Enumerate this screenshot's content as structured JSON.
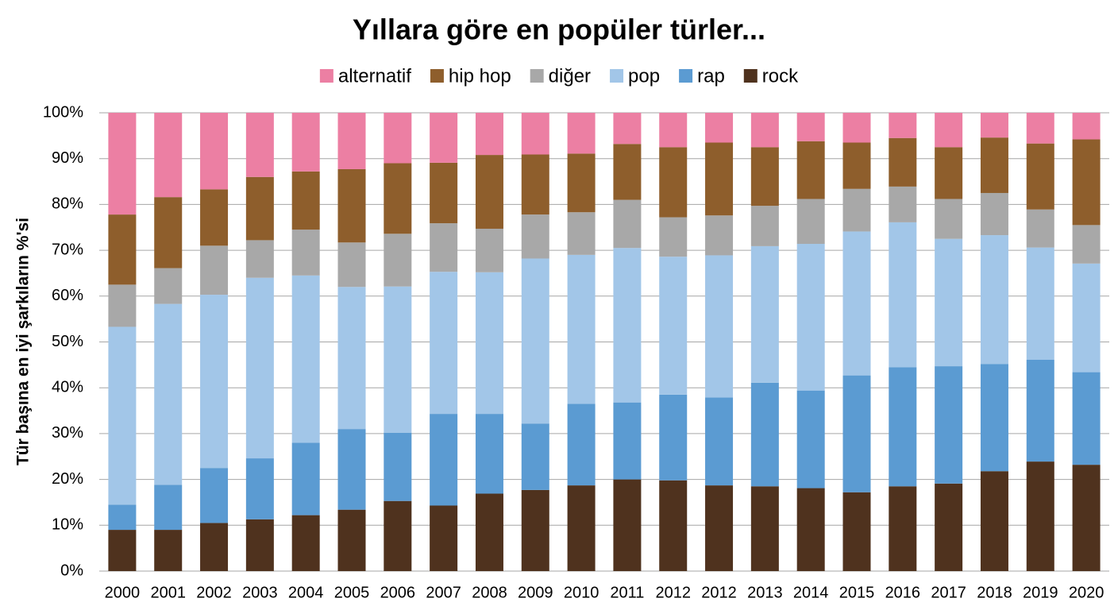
{
  "chart_data": {
    "type": "stacked_bar",
    "title": "Yıllara göre en popüler türler...",
    "y_label": "Tür başına en iyi şarkıların %'si",
    "categories": [
      "2000",
      "2001",
      "2002",
      "2003",
      "2004",
      "2005",
      "2006",
      "2007",
      "2008",
      "2009",
      "2010",
      "2011",
      "2012",
      "2012",
      "2013",
      "2014",
      "2015",
      "2016",
      "2017",
      "2018",
      "2019",
      "2020"
    ],
    "series": [
      {
        "name": "rock",
        "color": "#4f321e",
        "values": [
          9,
          9,
          10.5,
          11.3,
          12.2,
          13.4,
          15.3,
          14.3,
          16.9,
          17.7,
          18.7,
          20,
          19.8,
          18.7,
          18.5,
          18.1,
          17.2,
          18.5,
          19.1,
          21.8,
          23.9,
          23.2
        ]
      },
      {
        "name": "rap",
        "color": "#5b9bd2",
        "values": [
          5.5,
          9.8,
          12,
          13.3,
          15.8,
          17.6,
          14.9,
          20,
          17.4,
          14.5,
          17.8,
          16.8,
          18.7,
          19.2,
          22.6,
          21.3,
          25.5,
          26,
          25.6,
          23.4,
          22.2,
          20.2
        ]
      },
      {
        "name": "pop",
        "color": "#a2c6e8",
        "values": [
          38.8,
          39.5,
          37.8,
          39.4,
          36.5,
          31,
          31.9,
          31,
          30.9,
          36,
          32.5,
          33.7,
          30.1,
          31,
          29.8,
          32,
          31.4,
          31.6,
          27.8,
          28.1,
          24.5,
          23.7
        ]
      },
      {
        "name": "diğer",
        "color": "#a8a8a8",
        "values": [
          9.2,
          7.8,
          10.7,
          8.2,
          10,
          9.7,
          11.5,
          10.6,
          9.5,
          9.6,
          9.3,
          10.5,
          8.6,
          8.7,
          8.8,
          9.8,
          9.3,
          7.8,
          8.7,
          9.2,
          8.3,
          8.4
        ]
      },
      {
        "name": "hip hop",
        "color": "#8e5e2c",
        "values": [
          15.3,
          15.5,
          12.3,
          13.8,
          12.7,
          16,
          15.4,
          13.2,
          16.1,
          13.1,
          12.8,
          12.2,
          15.3,
          15.9,
          12.8,
          12.6,
          10.1,
          10.6,
          11.3,
          12.1,
          14.4,
          18.7
        ]
      },
      {
        "name": "alternatif",
        "color": "#ec7fa3",
        "values": [
          22.2,
          18.4,
          16.7,
          14,
          12.8,
          12.3,
          11,
          10.9,
          9.2,
          9.1,
          8.9,
          6.8,
          7.5,
          6.5,
          7.5,
          6.2,
          6.5,
          5.5,
          7.5,
          5.4,
          6.7,
          5.8
        ]
      }
    ],
    "ylim": [
      0,
      100
    ],
    "yticks": [
      {
        "value": 0,
        "label": "0%"
      },
      {
        "value": 10,
        "label": "10%"
      },
      {
        "value": 20,
        "label": "20%"
      },
      {
        "value": 30,
        "label": "30%"
      },
      {
        "value": 40,
        "label": "40%"
      },
      {
        "value": 50,
        "label": "50%"
      },
      {
        "value": 60,
        "label": "60%"
      },
      {
        "value": 70,
        "label": "70%"
      },
      {
        "value": 80,
        "label": "80%"
      },
      {
        "value": 90,
        "label": "90%"
      },
      {
        "value": 100,
        "label": "100%"
      }
    ],
    "grid": true
  }
}
